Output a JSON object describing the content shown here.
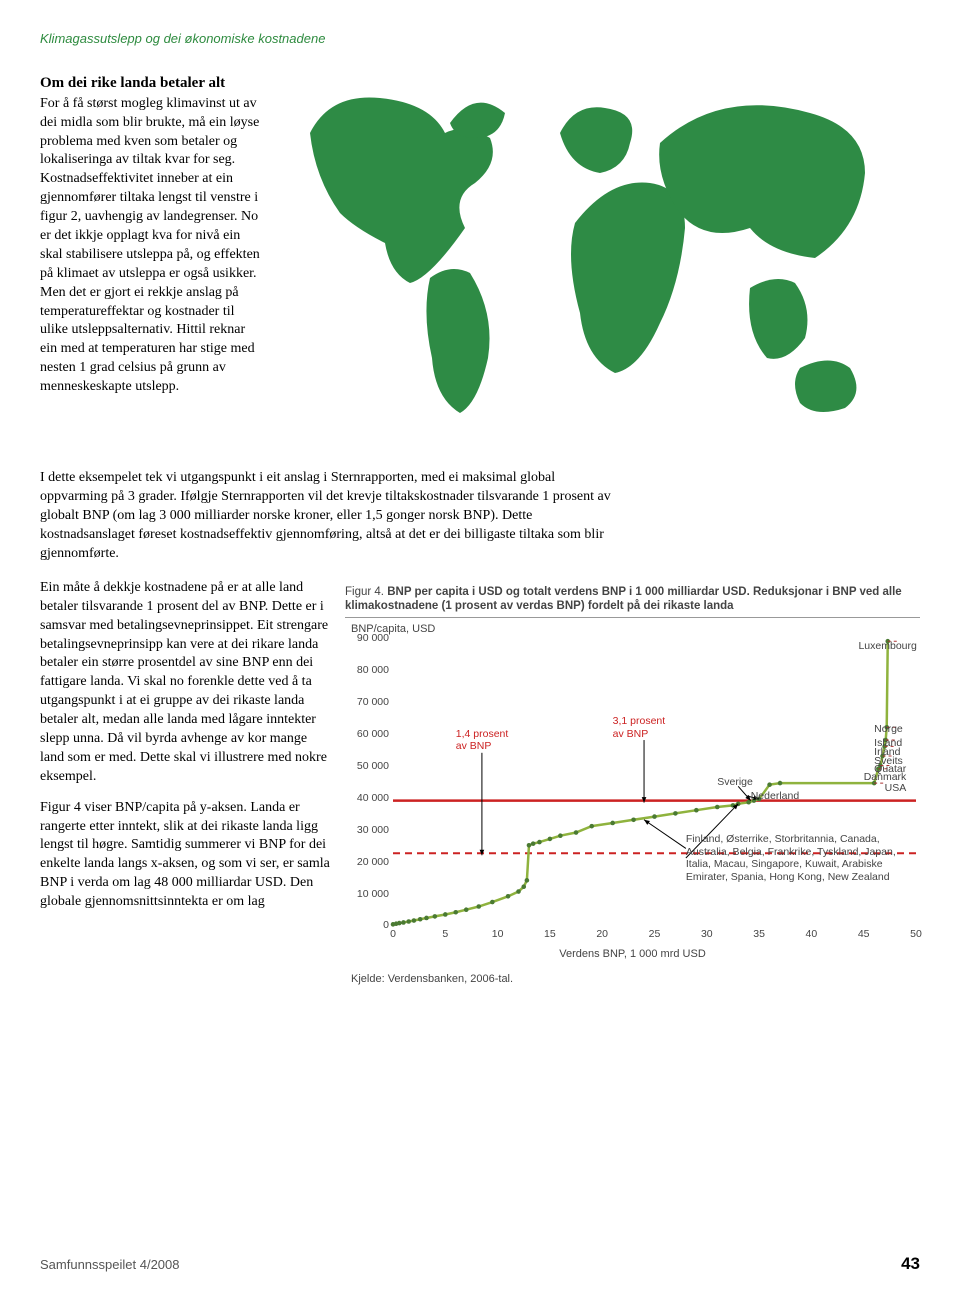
{
  "header": "Klimagassutslepp og dei økonomiske kostnadene",
  "article": {
    "title": "Om dei rike landa betaler alt",
    "para1": "For å få størst mogleg klimavinst ut av dei midla som blir brukte, må ein løyse problema med kven som betaler og lokaliseringa av tiltak kvar for seg. Kostnadseffektivitet inneber at ein gjennomfører tiltaka lengst til venstre i figur 2, uavhengig av landegrenser. No er det ikkje opplagt kva for nivå ein skal stabilisere utsleppa på, og effekten på klimaet av utsleppa er også usikker. Men det er gjort ei rekkje anslag på temperatureffektar og kostnader til ulike utsleppsalternativ. Hittil reknar ein med at temperaturen har stige med nesten 1 grad celsius på grunn av menneskeskapte utslepp.",
    "para2": "I dette eksempelet tek vi utgangspunkt i eit anslag i Sternrapporten, med ei maksimal global oppvarming på 3 grader. Ifølgje Sternrapporten vil det krevje tiltakskostnader tilsvarande 1 prosent av globalt BNP (om lag 3 000 milliarder norske kroner, eller 1,5 gonger norsk BNP). Dette kostnadsanslaget føreset kostnadseffektiv gjennomføring, altså at det er dei billigaste tiltaka som blir gjennomførte.",
    "para3": "Ein måte å dekkje kostnadene på er at alle land betaler tilsvarande 1 prosent del av BNP. Dette er i samsvar med betalingsevneprinsippet. Eit strengare betalingsevneprinsipp kan vere at dei rikare landa betaler ein større prosentdel av sine BNP enn dei fattigare landa. Vi skal no forenkle dette ved å ta utgangspunkt i at ei gruppe av dei rikaste landa betaler alt, medan alle landa med lågare inntekter slepp unna. Då vil byrda avhenge av kor mange land som er med. Dette skal vi illustrere med nokre eksempel.",
    "para4": "Figur 4 viser BNP/capita på y-aksen. Landa er rangerte etter inntekt, slik at dei rikaste landa ligg lengst til høgre. Samtidig summerer vi BNP for dei enkelte landa langs x-aksen, og som vi ser, er samla BNP i verda om lag 48 000 milliardar USD. Den globale gjennomsnittsinntekta er om lag"
  },
  "chart": {
    "fig_num": "Figur 4.",
    "caption_bold": "BNP per capita i USD og totalt verdens BNP i 1 000 milliardar USD. Reduksjonar i BNP ved alle klimakostnadene (1 prosent av verdas BNP) fordelt på dei rikaste landa",
    "ylabel": "BNP/capita, USD",
    "xlabel": "Verdens BNP, 1 000 mrd USD",
    "source": "Kjelde: Verdensbanken, 2006-tal.",
    "ylim": [
      0,
      90000
    ],
    "xlim": [
      0,
      50
    ],
    "yticks": [
      0,
      10000,
      20000,
      30000,
      40000,
      50000,
      60000,
      70000,
      80000,
      90000
    ],
    "ytick_labels": [
      "0",
      "10 000",
      "20 000",
      "30 000",
      "40 000",
      "50 000",
      "60 000",
      "70 000",
      "80 000",
      "90 000"
    ],
    "xticks": [
      0,
      5,
      10,
      15,
      20,
      25,
      30,
      35,
      40,
      45,
      50
    ],
    "xtick_labels": [
      "0",
      "5",
      "10",
      "15",
      "20",
      "25",
      "30",
      "35",
      "40",
      "45",
      "50"
    ],
    "series_color": "#8fb33e",
    "marker_color": "#4a7a32",
    "dashline_color": "#c22",
    "solidline_color": "#c22",
    "data": [
      [
        0,
        200
      ],
      [
        0.3,
        400
      ],
      [
        0.6,
        600
      ],
      [
        1,
        800
      ],
      [
        1.5,
        1100
      ],
      [
        2,
        1400
      ],
      [
        2.6,
        1800
      ],
      [
        3.2,
        2200
      ],
      [
        4,
        2700
      ],
      [
        5,
        3300
      ],
      [
        6,
        4000
      ],
      [
        7,
        4800
      ],
      [
        8.2,
        5800
      ],
      [
        9.5,
        7200
      ],
      [
        11,
        9000
      ],
      [
        12,
        10500
      ],
      [
        12.5,
        12000
      ],
      [
        12.8,
        14000
      ],
      [
        13,
        25000
      ],
      [
        13.4,
        25500
      ],
      [
        14,
        26000
      ],
      [
        15,
        27000
      ],
      [
        16,
        28000
      ],
      [
        17.5,
        29000
      ],
      [
        19,
        31000
      ],
      [
        21,
        32000
      ],
      [
        23,
        33000
      ],
      [
        25,
        34000
      ],
      [
        27,
        35000
      ],
      [
        29,
        36000
      ],
      [
        31,
        37000
      ],
      [
        32.5,
        37500
      ],
      [
        33,
        38000
      ],
      [
        34,
        38500
      ],
      [
        34.5,
        39000
      ],
      [
        35,
        39500
      ],
      [
        36,
        44000
      ],
      [
        37,
        44500
      ],
      [
        46,
        44500
      ],
      [
        46.4,
        49000
      ],
      [
        46.6,
        50000
      ],
      [
        46.8,
        53000
      ],
      [
        47,
        56000
      ],
      [
        47.1,
        58000
      ],
      [
        47.2,
        62000
      ],
      [
        47.3,
        89000
      ]
    ],
    "red_dashed_y": 22500,
    "red_solid_y": 39000,
    "annotations": {
      "p14": "1,4 prosent\nav BNP",
      "p31": "3,1 prosent\nav BNP",
      "lux": "Luxembourg",
      "norge": "Norge",
      "island": "Island",
      "irland": "Irland",
      "sveits": "Sveits",
      "quatar": "Quatar",
      "danmark": "Danmark",
      "usa": "USA",
      "sverige": "Sverige",
      "nederland": "Nederland",
      "group": "Finland, Østerrike, Storbritannia, Canada, Australia, Belgia, Frankrike, Tyskland, Japan, Italia, Macau, Singapore, Kuwait, Arabiske Emirater, Spania, Hong Kong, New Zealand"
    }
  },
  "footer": {
    "source": "Samfunnsspeilet 4/2008",
    "page": "43"
  },
  "colors": {
    "green": "#2e8b45",
    "chart_green": "#8fb33e",
    "red": "#c22"
  }
}
